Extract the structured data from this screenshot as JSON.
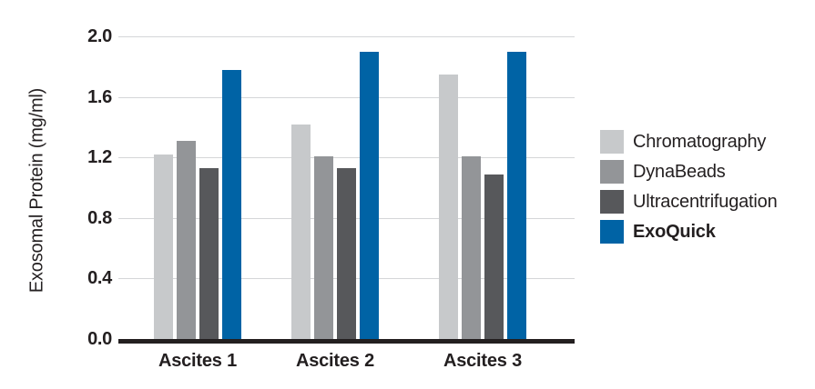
{
  "figure": {
    "background": "#FFFFFF",
    "text_color": "#231F20",
    "gridline_color": "#D5D6D8",
    "axis_line_color": "#231F20"
  },
  "chart_data": {
    "type": "bar",
    "title": "",
    "xlabel": "",
    "ylabel": "Exosomal Protein (mg/ml)",
    "ylim": [
      0,
      2.0
    ],
    "ytick_step": 0.4,
    "yticks": [
      "2.0",
      "1.6",
      "1.2",
      "0.8",
      "0.4",
      "0.0"
    ],
    "grid": true,
    "legend_position": "right",
    "categories": [
      "Ascites 1",
      "Ascites 2",
      "Ascites 3"
    ],
    "series": [
      {
        "name": "Chromatography",
        "color": "#C7C9CB",
        "bold": false,
        "values": [
          1.22,
          1.42,
          1.75
        ]
      },
      {
        "name": "DynaBeads",
        "color": "#939598",
        "bold": false,
        "values": [
          1.31,
          1.21,
          1.21
        ]
      },
      {
        "name": "Ultracentrifugation",
        "color": "#57585B",
        "bold": false,
        "values": [
          1.13,
          1.13,
          1.09
        ]
      },
      {
        "name": "ExoQuick",
        "color": "#0063A5",
        "bold": true,
        "values": [
          1.78,
          1.9,
          1.9
        ]
      }
    ]
  }
}
